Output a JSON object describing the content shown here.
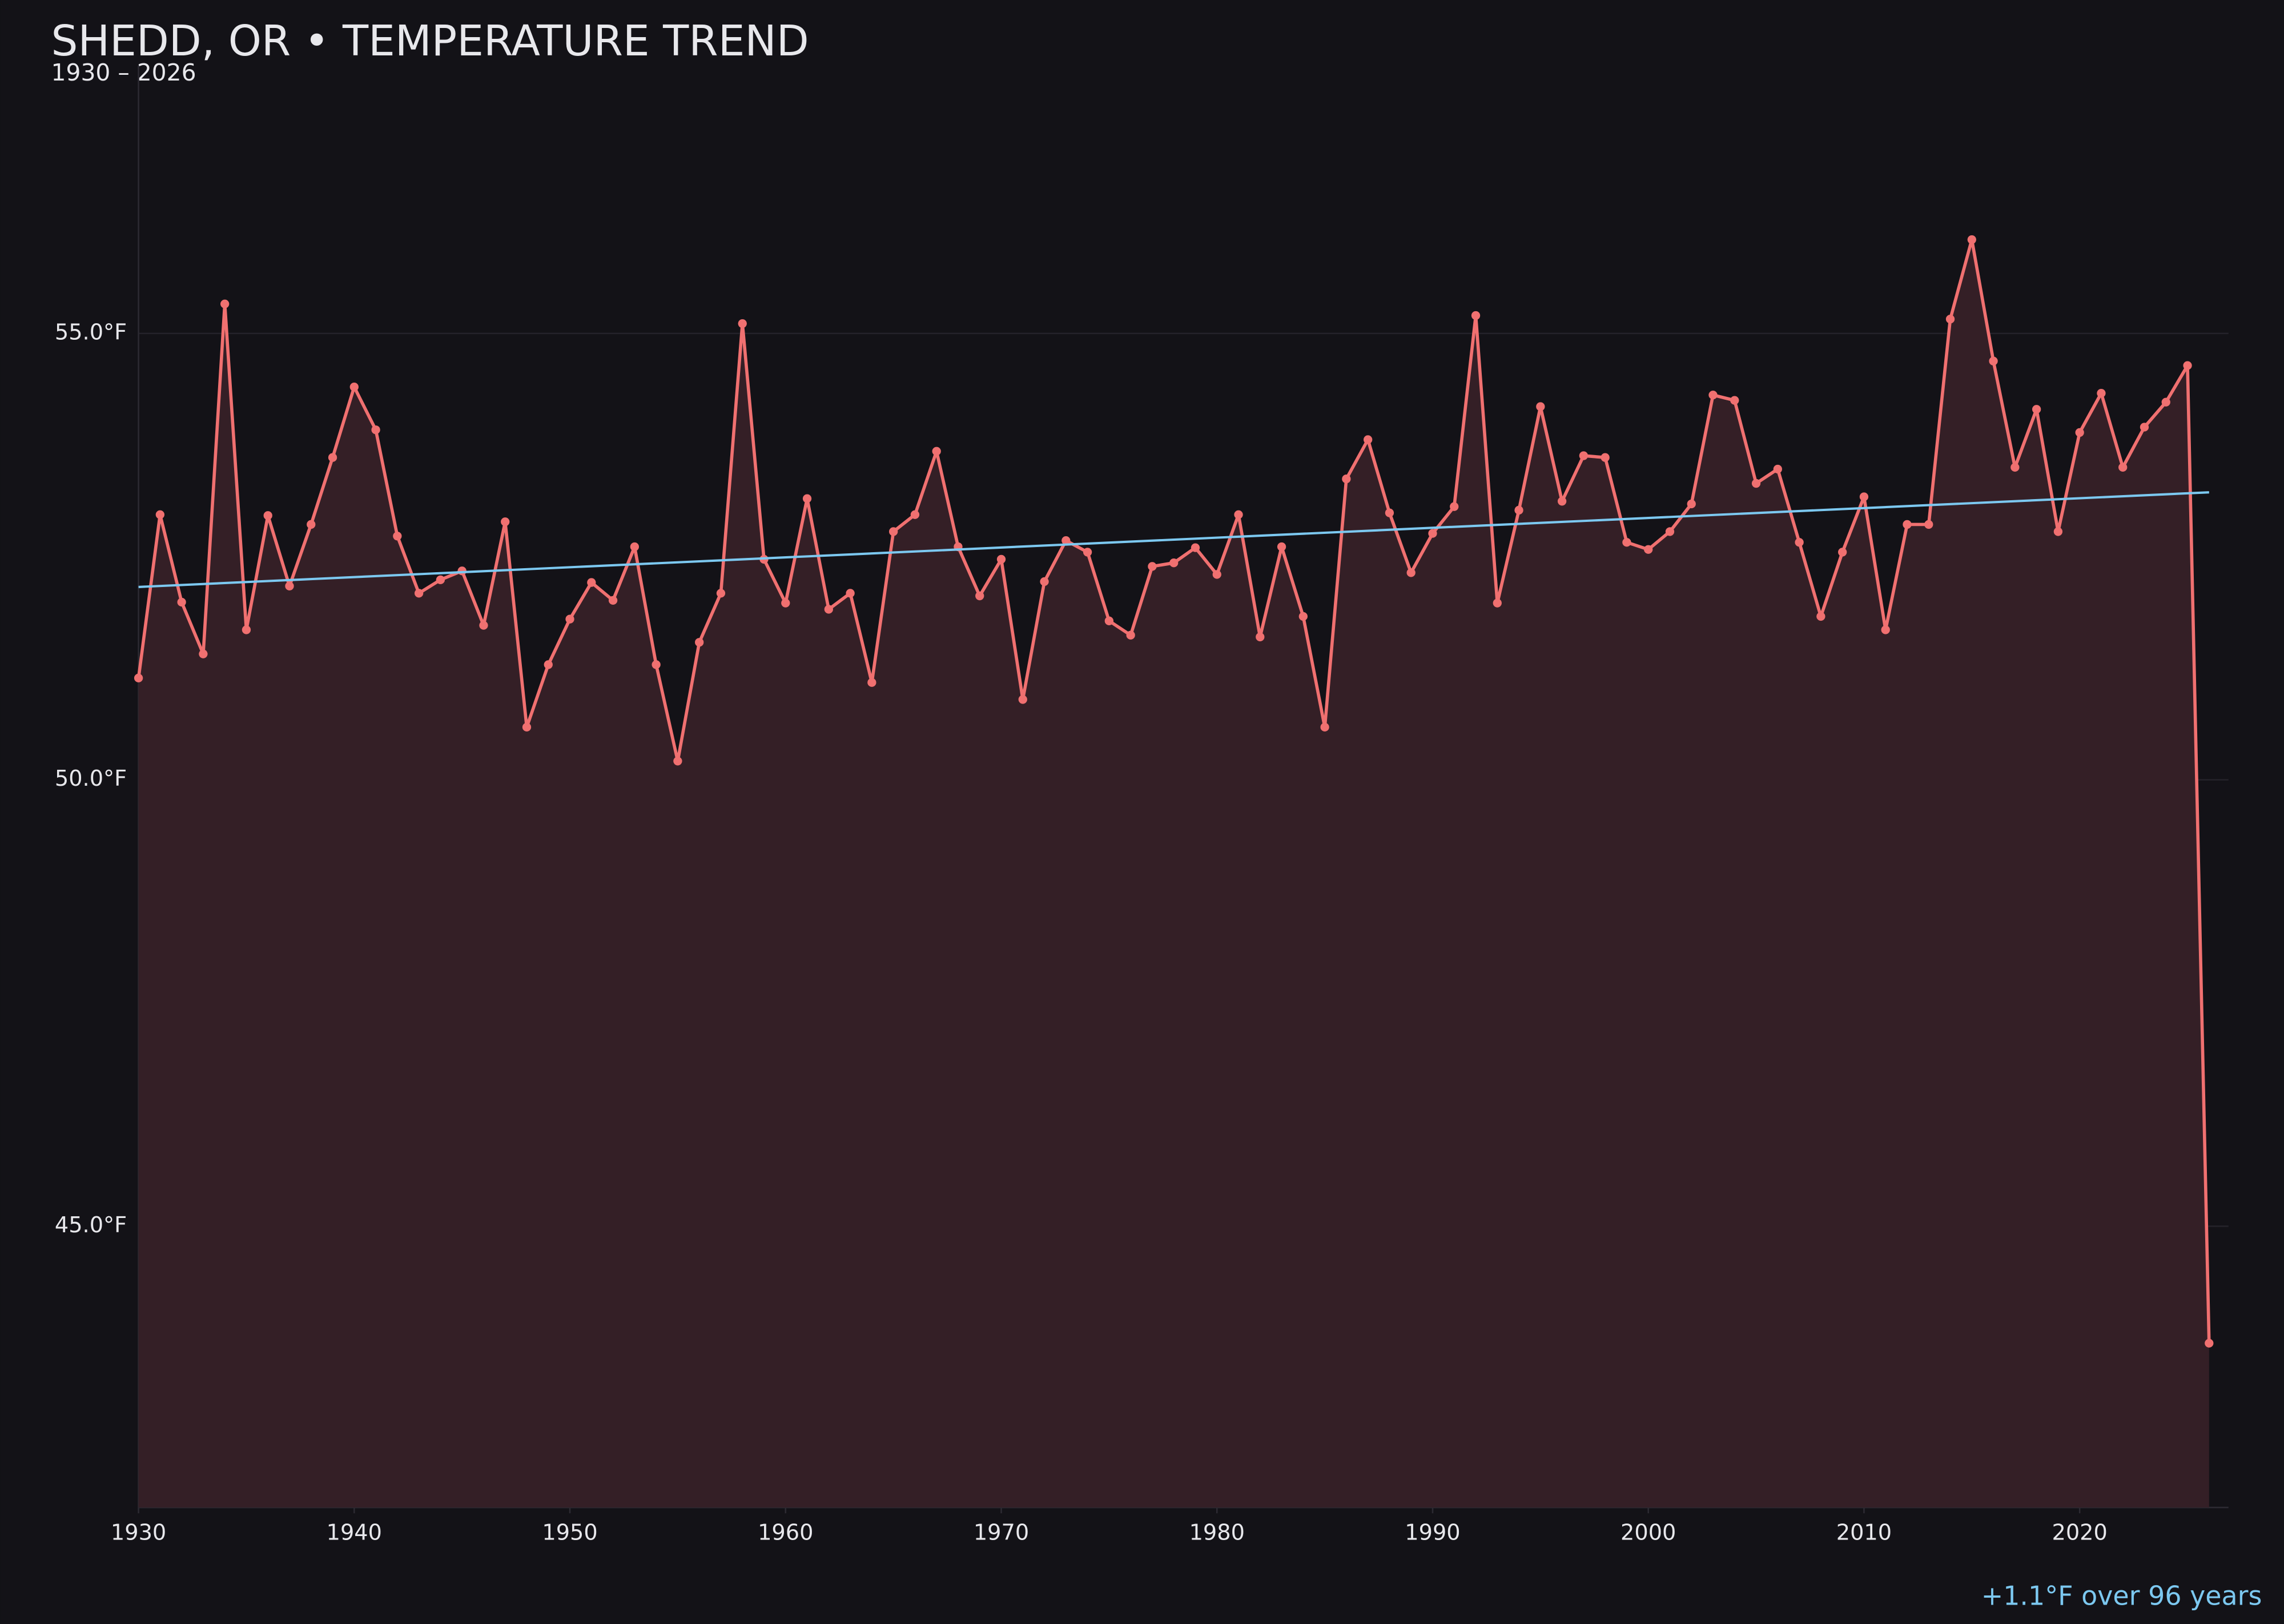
{
  "chart_data": {
    "type": "line",
    "title": "SHEDD, OR • TEMPERATURE TREND",
    "subtitle": "1930 – 2026",
    "annotation": "+1.1°F over 96 years",
    "x": [
      1930,
      1931,
      1932,
      1933,
      1934,
      1935,
      1936,
      1937,
      1938,
      1939,
      1940,
      1941,
      1942,
      1943,
      1944,
      1945,
      1946,
      1947,
      1948,
      1949,
      1950,
      1951,
      1952,
      1953,
      1954,
      1955,
      1956,
      1957,
      1958,
      1959,
      1960,
      1961,
      1962,
      1963,
      1964,
      1965,
      1966,
      1967,
      1968,
      1969,
      1970,
      1971,
      1972,
      1973,
      1974,
      1975,
      1976,
      1977,
      1978,
      1979,
      1980,
      1981,
      1982,
      1983,
      1984,
      1985,
      1986,
      1987,
      1988,
      1989,
      1990,
      1991,
      1992,
      1993,
      1994,
      1995,
      1996,
      1997,
      1998,
      1999,
      2000,
      2001,
      2002,
      2003,
      2004,
      2005,
      2006,
      2007,
      2008,
      2009,
      2010,
      2011,
      2012,
      2013,
      2014,
      2015,
      2016,
      2017,
      2018,
      2019,
      2020,
      2021,
      2022,
      2023,
      2024,
      2025,
      2026
    ],
    "series": [
      {
        "color": "#f07070",
        "fill": "#341f26",
        "values": [
          51.14,
          52.97,
          51.99,
          51.41,
          55.33,
          51.68,
          52.96,
          52.17,
          52.86,
          53.61,
          54.4,
          53.92,
          52.73,
          52.09,
          52.24,
          52.34,
          51.73,
          52.89,
          50.59,
          51.29,
          51.8,
          52.21,
          52.01,
          52.61,
          51.29,
          50.21,
          51.54,
          52.09,
          55.11,
          52.47,
          51.98,
          53.15,
          51.91,
          52.09,
          51.09,
          52.78,
          52.97,
          53.68,
          52.61,
          52.06,
          52.47,
          50.9,
          52.22,
          52.68,
          52.55,
          51.78,
          51.62,
          52.39,
          52.43,
          52.6,
          52.3,
          52.97,
          51.6,
          52.61,
          51.83,
          50.59,
          53.37,
          53.81,
          52.99,
          52.32,
          52.76,
          53.06,
          55.2,
          51.98,
          53.02,
          54.18,
          53.12,
          53.63,
          53.61,
          52.66,
          52.58,
          52.78,
          53.09,
          54.31,
          54.25,
          53.32,
          53.48,
          52.66,
          51.83,
          52.55,
          53.17,
          51.68,
          52.86,
          52.86,
          55.16,
          56.05,
          54.69,
          53.5,
          54.15,
          52.78,
          53.89,
          54.33,
          53.5,
          53.95,
          54.23,
          54.64,
          43.69
        ]
      }
    ],
    "trend": {
      "color": "#7cc8f0",
      "x": [
        1930,
        2026
      ],
      "values": [
        52.16,
        53.22
      ]
    },
    "xlim": [
      1930,
      2026.9
    ],
    "xticks": [
      1930,
      1940,
      1950,
      1960,
      1970,
      1980,
      1990,
      2000,
      2010,
      2020
    ],
    "ylim": [
      41.85,
      58.0
    ],
    "yticks": [
      {
        "value": 45,
        "label": "45.0°F"
      },
      {
        "value": 50,
        "label": "50.0°F"
      },
      {
        "value": 55,
        "label": "55.0°F"
      }
    ],
    "grid": true
  }
}
